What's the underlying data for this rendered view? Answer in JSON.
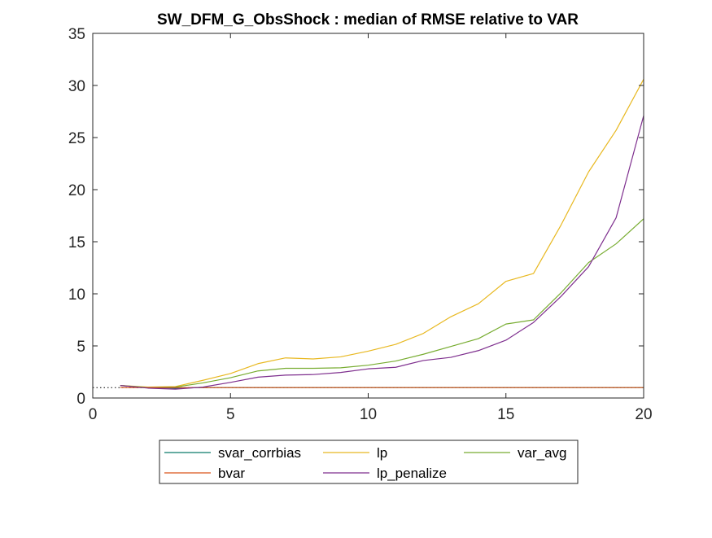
{
  "chart_data": {
    "type": "line",
    "title": "SW_DFM_G_ObsShock : median of RMSE relative to VAR",
    "xlabel": "",
    "ylabel": "",
    "xlim": [
      0,
      20
    ],
    "ylim": [
      0,
      35
    ],
    "x_ticks": [
      0,
      5,
      10,
      15,
      20
    ],
    "y_ticks": [
      0,
      5,
      10,
      15,
      20,
      25,
      30,
      35
    ],
    "grid": false,
    "legend_position": "bottom",
    "x": [
      1,
      2,
      3,
      4,
      5,
      6,
      7,
      8,
      9,
      10,
      11,
      12,
      13,
      14,
      15,
      16,
      17,
      18,
      19,
      20
    ],
    "series": [
      {
        "name": "svar_corrbias",
        "color": "#0a7a6a",
        "values": [
          1.2,
          1.0,
          0.95,
          1.0,
          1.0,
          1.0,
          1.0,
          1.0,
          1.0,
          1.0,
          1.0,
          1.0,
          1.0,
          1.0,
          1.0,
          1.0,
          1.0,
          1.0,
          1.0,
          1.0
        ]
      },
      {
        "name": "lp",
        "color": "#e8b820",
        "values": [
          1.2,
          1.05,
          1.1,
          1.7,
          2.35,
          3.3,
          3.85,
          3.75,
          3.95,
          4.5,
          5.15,
          6.2,
          7.8,
          9.05,
          11.2,
          11.95,
          16.6,
          21.7,
          25.7,
          30.6
        ]
      },
      {
        "name": "var_avg",
        "color": "#77ac30",
        "values": [
          1.2,
          1.0,
          1.05,
          1.45,
          1.95,
          2.6,
          2.85,
          2.85,
          2.9,
          3.15,
          3.55,
          4.2,
          4.95,
          5.7,
          7.1,
          7.5,
          10.1,
          13.0,
          14.8,
          17.2
        ]
      },
      {
        "name": "bvar",
        "color": "#d95319",
        "values": [
          1.0,
          1.0,
          1.0,
          1.0,
          1.0,
          1.0,
          1.0,
          1.0,
          1.0,
          1.0,
          1.0,
          1.0,
          1.0,
          1.0,
          1.0,
          1.0,
          1.0,
          1.0,
          1.0,
          1.0
        ]
      },
      {
        "name": "lp_penalize",
        "color": "#7e2f8e",
        "values": [
          1.2,
          0.95,
          0.85,
          1.05,
          1.5,
          2.0,
          2.2,
          2.25,
          2.45,
          2.8,
          2.95,
          3.6,
          3.9,
          4.55,
          5.55,
          7.25,
          9.75,
          12.6,
          17.3,
          27.1
        ]
      }
    ],
    "reference_line": {
      "y": 1,
      "color": "#000000",
      "style": "dotted"
    }
  }
}
